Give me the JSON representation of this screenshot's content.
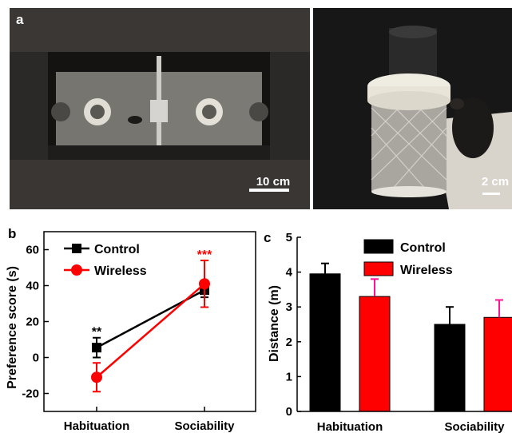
{
  "panel_a": {
    "letter": "a",
    "left_scalebar": "10 cm",
    "right_scalebar": "2 cm"
  },
  "chart_data": [
    {
      "panel": "b",
      "type": "line",
      "categories": [
        "Habituation",
        "Sociability"
      ],
      "ylabel": "Preference score (s)",
      "ylim": [
        -30,
        70
      ],
      "yticks": [
        -20,
        0,
        20,
        40,
        60
      ],
      "legend_position": "top-left",
      "series": [
        {
          "name": "Control",
          "values": [
            5.5,
            37.5
          ],
          "errors": [
            5.5,
            4
          ],
          "marker": "square",
          "color": "#000000",
          "error_color": "#000000"
        },
        {
          "name": "Wireless",
          "values": [
            -11,
            41
          ],
          "errors": [
            8,
            13
          ],
          "marker": "circle",
          "color": "#ff0000",
          "error_color": "#ff0000"
        }
      ],
      "annotations": [
        {
          "text": "**",
          "category": "Habituation",
          "y": 12,
          "color": "#000000"
        },
        {
          "text": "***",
          "category": "Sociability",
          "y": 55,
          "color": "#ff0000"
        }
      ]
    },
    {
      "panel": "c",
      "type": "bar",
      "categories": [
        "Habituation",
        "Sociability"
      ],
      "ylabel": "Distance (m)",
      "ylim": [
        0,
        5
      ],
      "yticks": [
        0,
        1,
        2,
        3,
        4,
        5
      ],
      "legend_position": "top-right",
      "series": [
        {
          "name": "Control",
          "values": [
            3.95,
            2.5
          ],
          "errors": [
            0.3,
            0.5
          ],
          "color": "#000000",
          "error_color": "#000000"
        },
        {
          "name": "Wireless",
          "values": [
            3.3,
            2.7
          ],
          "errors": [
            0.5,
            0.5
          ],
          "color": "#ff0000",
          "error_color": "#ff1493"
        }
      ]
    }
  ]
}
